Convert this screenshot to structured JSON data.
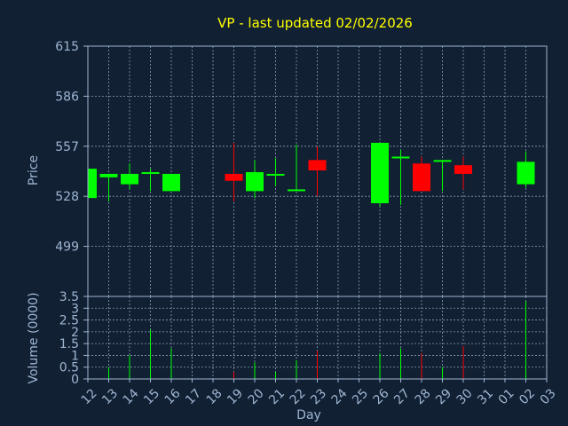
{
  "colors": {
    "background": "#112033",
    "title": "#ffff00",
    "axis_text": "#9fb6d2",
    "grid": "#9fb6d2",
    "up": "#00ff00",
    "down": "#ff0000"
  },
  "chart_data": {
    "type": "candlestick",
    "title": "VP - last updated 02/02/2026",
    "xlabel": "Day",
    "ylabel_price": "Price",
    "ylabel_volume": "Volume (0000)",
    "x_ticks": [
      "12",
      "13",
      "14",
      "15",
      "16",
      "17",
      "18",
      "19",
      "20",
      "21",
      "22",
      "23",
      "24",
      "25",
      "26",
      "27",
      "28",
      "29",
      "30",
      "31",
      "01",
      "02",
      "03"
    ],
    "price_ticks": [
      "615",
      "586",
      "557",
      "528",
      "499"
    ],
    "price_tick_values": [
      615,
      586,
      557,
      528,
      499
    ],
    "price_range": [
      470,
      615
    ],
    "volume_ticks": [
      "3.5",
      "3",
      "2.5",
      "2",
      "1.5",
      "1",
      "0.5",
      "0"
    ],
    "volume_tick_values": [
      3.5,
      3,
      2.5,
      2,
      1.5,
      1,
      0.5,
      0
    ],
    "volume_range": [
      0,
      3.5
    ],
    "grid": true,
    "candles": [
      {
        "day": "12",
        "open": 527,
        "close": 544,
        "high": 544,
        "low": 527,
        "volume": 0.0
      },
      {
        "day": "13",
        "open": 539,
        "close": 541,
        "high": 541,
        "low": 525,
        "volume": 0.5
      },
      {
        "day": "14",
        "open": 535,
        "close": 541,
        "high": 547,
        "low": 532,
        "volume": 1.0
      },
      {
        "day": "15",
        "open": 541,
        "close": 542,
        "high": 544,
        "low": 531,
        "volume": 2.1
      },
      {
        "day": "16",
        "open": 531,
        "close": 541,
        "high": 541,
        "low": 531,
        "volume": 1.3
      },
      {
        "day": "19",
        "open": 541,
        "close": 537,
        "high": 559,
        "low": 525,
        "volume": 0.3
      },
      {
        "day": "20",
        "open": 531,
        "close": 542,
        "high": 549,
        "low": 527,
        "volume": 0.7
      },
      {
        "day": "21",
        "open": 540,
        "close": 541,
        "high": 550,
        "low": 534,
        "volume": 0.3
      },
      {
        "day": "22",
        "open": 531,
        "close": 532,
        "high": 558,
        "low": 531,
        "volume": 0.8
      },
      {
        "day": "23",
        "open": 549,
        "close": 543,
        "high": 557,
        "low": 528,
        "volume": 1.2
      },
      {
        "day": "26",
        "open": 524,
        "close": 559,
        "high": 559,
        "low": 522,
        "volume": 1.1
      },
      {
        "day": "27",
        "open": 550,
        "close": 551,
        "high": 555,
        "low": 523,
        "volume": 1.3
      },
      {
        "day": "28",
        "open": 547,
        "close": 531,
        "high": 551,
        "low": 531,
        "volume": 1.1
      },
      {
        "day": "29",
        "open": 548,
        "close": 549,
        "high": 549,
        "low": 531,
        "volume": 0.5
      },
      {
        "day": "30",
        "open": 546,
        "close": 541,
        "high": 551,
        "low": 532,
        "volume": 1.4
      },
      {
        "day": "02",
        "open": 535,
        "close": 548,
        "high": 554,
        "low": 533,
        "volume": 3.3
      }
    ]
  }
}
